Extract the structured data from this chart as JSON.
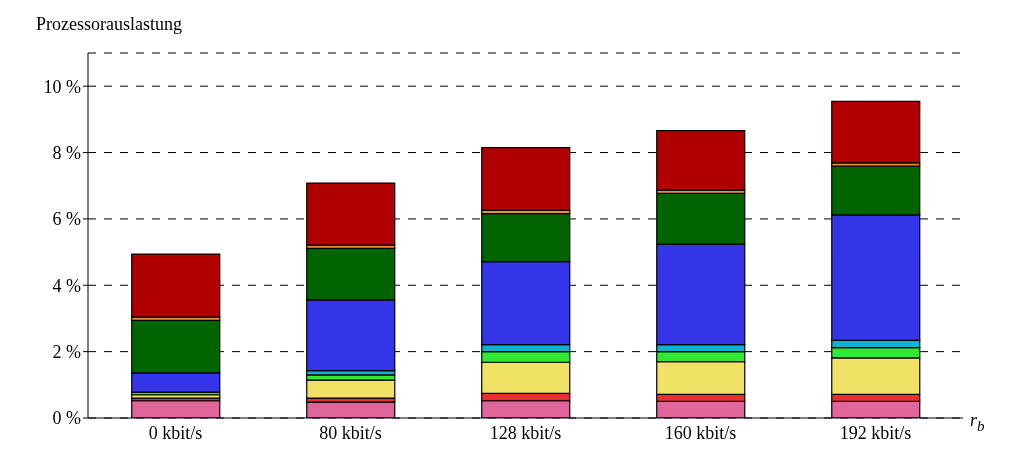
{
  "chart_data": {
    "type": "bar",
    "stacked": true,
    "ylabel": "Prozessorauslastung",
    "xlabel": "r$_{b}$",
    "categories": [
      "0 kbit/s",
      "80 kbit/s",
      "128 kbit/s",
      "160 kbit/s",
      "192 kbit/s"
    ],
    "ylim": [
      0,
      11
    ],
    "yticks": [
      {
        "value": 0,
        "label": "0 %"
      },
      {
        "value": 2,
        "label": "2 %"
      },
      {
        "value": 4,
        "label": "4 %"
      },
      {
        "value": 6,
        "label": "6 %"
      },
      {
        "value": 8,
        "label": "8 %"
      },
      {
        "value": 10,
        "label": "10 %"
      }
    ],
    "grid": "y",
    "legend": false,
    "series": [
      {
        "color": "#e0659b",
        "values": [
          0.52,
          0.48,
          0.52,
          0.5,
          0.5
        ]
      },
      {
        "color": "#e83030",
        "values": [
          0.08,
          0.12,
          0.22,
          0.21,
          0.21
        ]
      },
      {
        "color": "#f0e264",
        "values": [
          0.1,
          0.54,
          0.94,
          0.99,
          1.1
        ]
      },
      {
        "color": "#33e833",
        "values": [
          0.08,
          0.16,
          0.32,
          0.3,
          0.31
        ]
      },
      {
        "color": "#10b0d8",
        "values": [
          null,
          0.13,
          0.21,
          0.21,
          0.22
        ]
      },
      {
        "color": "#3434e8",
        "values": [
          0.58,
          2.13,
          2.5,
          3.03,
          3.78
        ]
      },
      {
        "color": "#006400",
        "values": [
          1.58,
          1.55,
          1.45,
          1.53,
          1.47
        ]
      },
      {
        "color": "#e89030",
        "values": [
          0.1,
          0.1,
          0.1,
          0.1,
          0.1
        ]
      },
      {
        "color": "#b00000",
        "values": [
          1.9,
          1.87,
          1.89,
          1.79,
          1.85
        ]
      }
    ]
  }
}
